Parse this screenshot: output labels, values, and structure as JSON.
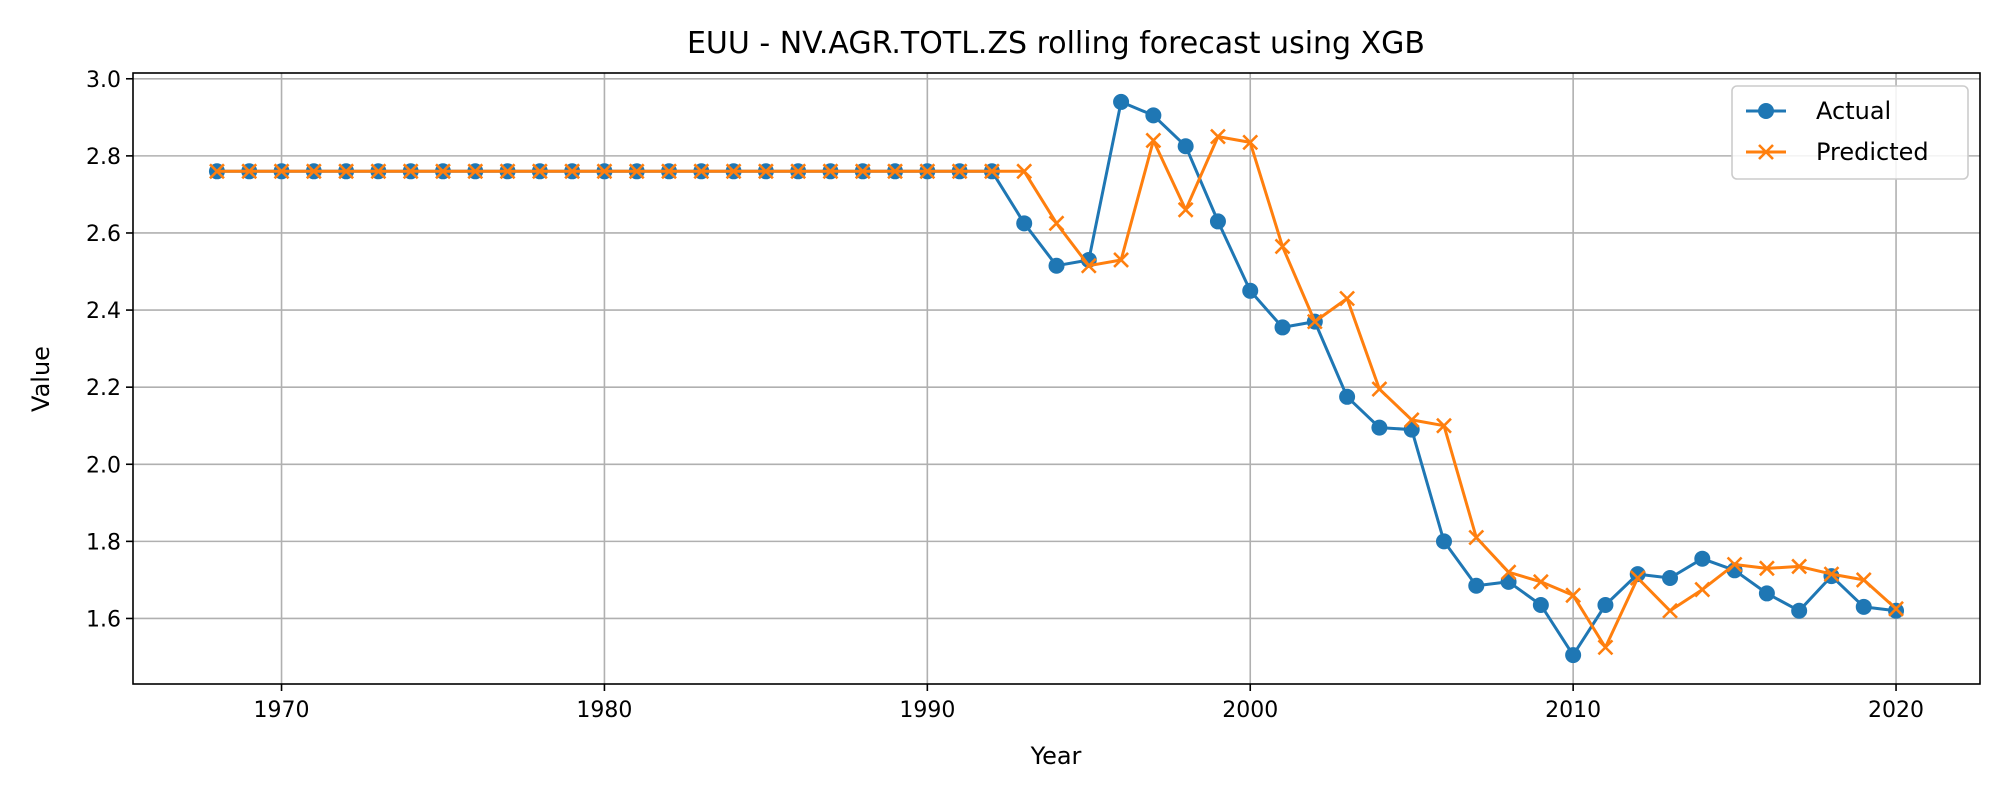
{
  "chart_data": {
    "type": "line",
    "title": "EUU - NV.AGR.TOTL.ZS rolling forecast using XGB",
    "xlabel": "Year",
    "ylabel": "Value",
    "xlim": [
      1965.4,
      2022.6
    ],
    "ylim": [
      1.43,
      3.015
    ],
    "xticks": [
      1970,
      1980,
      1990,
      2000,
      2010,
      2020
    ],
    "yticks": [
      1.6,
      1.8,
      2.0,
      2.2,
      2.4,
      2.6,
      2.8,
      3.0
    ],
    "ytick_labels": [
      "1.6",
      "1.8",
      "2.0",
      "2.2",
      "2.4",
      "2.6",
      "2.8",
      "3.0"
    ],
    "grid": true,
    "legend_position": "top-right",
    "x": [
      1968,
      1969,
      1970,
      1971,
      1972,
      1973,
      1974,
      1975,
      1976,
      1977,
      1978,
      1979,
      1980,
      1981,
      1982,
      1983,
      1984,
      1985,
      1986,
      1987,
      1988,
      1989,
      1990,
      1991,
      1992,
      1993,
      1994,
      1995,
      1996,
      1997,
      1998,
      1999,
      2000,
      2001,
      2002,
      2003,
      2004,
      2005,
      2006,
      2007,
      2008,
      2009,
      2010,
      2011,
      2012,
      2013,
      2014,
      2015,
      2016,
      2017,
      2018,
      2019,
      2020
    ],
    "series": [
      {
        "name": "Actual",
        "color": "#1f77b4",
        "marker": "circle",
        "values": [
          2.76,
          2.76,
          2.76,
          2.76,
          2.76,
          2.76,
          2.76,
          2.76,
          2.76,
          2.76,
          2.76,
          2.76,
          2.76,
          2.76,
          2.76,
          2.76,
          2.76,
          2.76,
          2.76,
          2.76,
          2.76,
          2.76,
          2.76,
          2.76,
          2.76,
          2.625,
          2.515,
          2.53,
          2.94,
          2.905,
          2.825,
          2.63,
          2.45,
          2.355,
          2.37,
          2.175,
          2.095,
          2.09,
          1.8,
          1.685,
          1.695,
          1.635,
          1.505,
          1.635,
          1.715,
          1.705,
          1.755,
          1.725,
          1.665,
          1.62,
          1.71,
          1.63,
          1.62
        ]
      },
      {
        "name": "Predicted",
        "color": "#ff7f0e",
        "marker": "x",
        "values": [
          2.76,
          2.76,
          2.76,
          2.76,
          2.76,
          2.76,
          2.76,
          2.76,
          2.76,
          2.76,
          2.76,
          2.76,
          2.76,
          2.76,
          2.76,
          2.76,
          2.76,
          2.76,
          2.76,
          2.76,
          2.76,
          2.76,
          2.76,
          2.76,
          2.76,
          2.76,
          2.625,
          2.515,
          2.53,
          2.84,
          2.66,
          2.85,
          2.835,
          2.565,
          2.37,
          2.43,
          2.195,
          2.115,
          2.1,
          1.81,
          1.72,
          1.695,
          1.66,
          1.525,
          1.705,
          1.62,
          1.675,
          1.74,
          1.73,
          1.735,
          1.715,
          1.7,
          1.625
        ]
      }
    ]
  }
}
